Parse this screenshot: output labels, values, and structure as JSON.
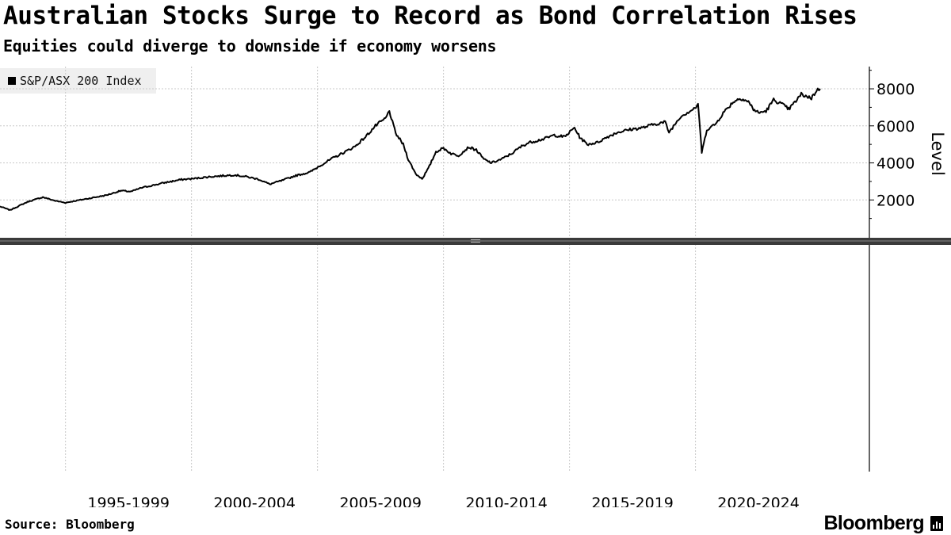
{
  "header": {
    "title": "Australian Stocks Surge to Record as Bond Correlation Rises",
    "subtitle": "Equities could diverge to downside if economy worsens"
  },
  "footer": {
    "source": "Source: Bloomberg",
    "brand": "Bloomberg"
  },
  "colors": {
    "series": "#000000",
    "grid": "#c8c8c8",
    "legend_bg": "#efefef"
  },
  "chart_data": {
    "type": "line",
    "title": "Australian Stocks Surge to Record as Bond Correlation Rises",
    "subtitle": "Equities could diverge to downside if economy worsens",
    "ylabel": "Level",
    "xlabel": "",
    "ylim": [
      0,
      9200
    ],
    "yticks": [
      2000,
      4000,
      6000,
      8000
    ],
    "xlim": [
      1992.4,
      2026.9
    ],
    "x_category_labels": [
      "1995-1999",
      "2000-2004",
      "2005-2009",
      "2010-2014",
      "2015-2019",
      "2020-2024"
    ],
    "x_gridlines": [
      1995,
      2000,
      2005,
      2010,
      2015,
      2020
    ],
    "legend": [
      "S&P/ASX 200 Index"
    ],
    "legend_position": "top-left",
    "grid": true,
    "series": [
      {
        "name": "S&P/ASX 200 Index",
        "x": [
          1992.4,
          1992.8,
          1993.5,
          1994.1,
          1994.6,
          1995.0,
          1995.5,
          1996.0,
          1996.6,
          1997.2,
          1997.6,
          1998.0,
          1998.5,
          1999.0,
          1999.6,
          2000.1,
          2000.7,
          2001.2,
          2001.7,
          2002.2,
          2002.7,
          2003.1,
          2003.6,
          2004.1,
          2004.7,
          2005.1,
          2005.6,
          2006.1,
          2006.5,
          2006.9,
          2007.3,
          2007.7,
          2007.85,
          2008.1,
          2008.4,
          2008.6,
          2008.9,
          2009.15,
          2009.4,
          2009.7,
          2010.0,
          2010.3,
          2010.6,
          2011.0,
          2011.3,
          2011.6,
          2011.9,
          2012.3,
          2012.7,
          2013.1,
          2013.4,
          2013.7,
          2014.0,
          2014.4,
          2014.8,
          2015.2,
          2015.4,
          2015.7,
          2016.1,
          2016.5,
          2016.9,
          2017.4,
          2017.9,
          2018.4,
          2018.8,
          2018.95,
          2019.4,
          2019.9,
          2020.1,
          2020.2,
          2020.25,
          2020.45,
          2020.8,
          2021.1,
          2021.5,
          2021.8,
          2022.1,
          2022.3,
          2022.5,
          2022.8,
          2023.1,
          2023.4,
          2023.7,
          2023.9,
          2024.2,
          2024.6,
          2024.8,
          2024.95
        ],
        "y": [
          1650,
          1450,
          1900,
          2150,
          1950,
          1850,
          1980,
          2100,
          2250,
          2500,
          2450,
          2650,
          2800,
          2950,
          3100,
          3150,
          3250,
          3300,
          3350,
          3250,
          3100,
          2850,
          3050,
          3300,
          3500,
          3850,
          4250,
          4600,
          4900,
          5400,
          6000,
          6400,
          6800,
          5600,
          5000,
          4200,
          3400,
          3150,
          3700,
          4600,
          4800,
          4500,
          4400,
          4850,
          4700,
          4200,
          4000,
          4200,
          4500,
          4900,
          5100,
          5200,
          5300,
          5500,
          5400,
          5900,
          5400,
          5000,
          5100,
          5400,
          5650,
          5800,
          5900,
          6100,
          6200,
          5650,
          6500,
          6900,
          7100,
          5500,
          4550,
          5800,
          6100,
          6700,
          7300,
          7500,
          7300,
          6900,
          6700,
          6800,
          7400,
          7200,
          6900,
          7200,
          7700,
          7500,
          7900,
          8000
        ]
      }
    ]
  }
}
